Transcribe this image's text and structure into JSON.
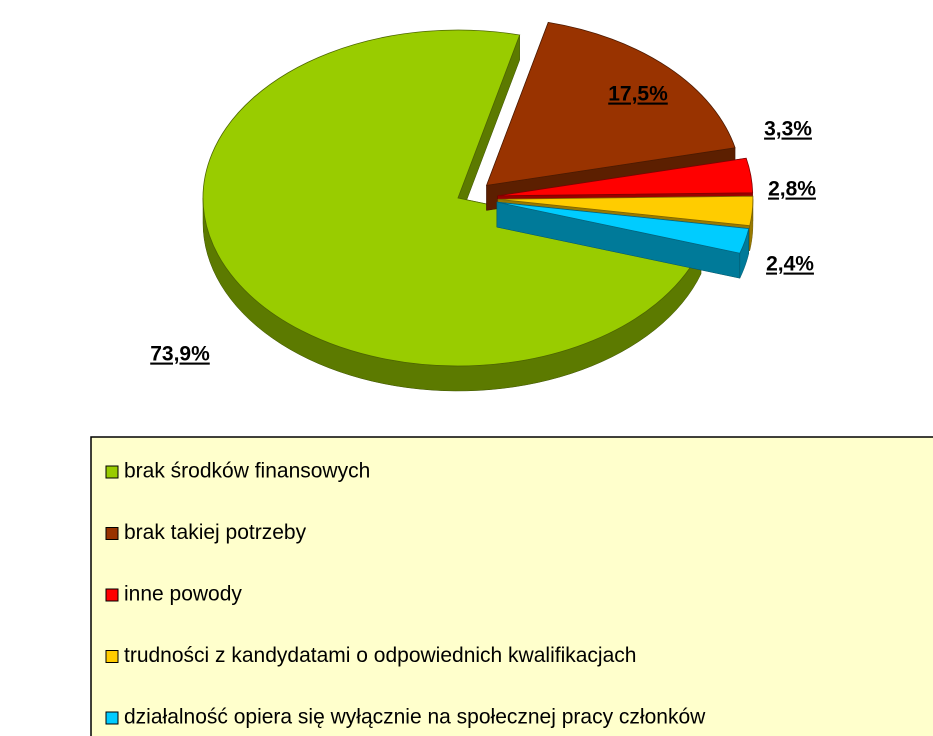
{
  "chart_data": {
    "type": "pie",
    "categories": [
      "brak środków finansowych",
      "brak takiej potrzeby",
      "inne powody",
      "trudności z kandydatami o odpowiednich kwalifikacjach",
      "działalność opiera się wyłącznie na społecznej pracy członków"
    ],
    "values": [
      73.9,
      17.5,
      3.3,
      2.8,
      2.4
    ],
    "value_labels": [
      "73,9%",
      "17,5%",
      "3,3%",
      "2,8%",
      "2,4%"
    ],
    "colors": [
      "#99cc00",
      "#993300",
      "#ff0000",
      "#ffcc00",
      "#00ccff"
    ]
  }
}
